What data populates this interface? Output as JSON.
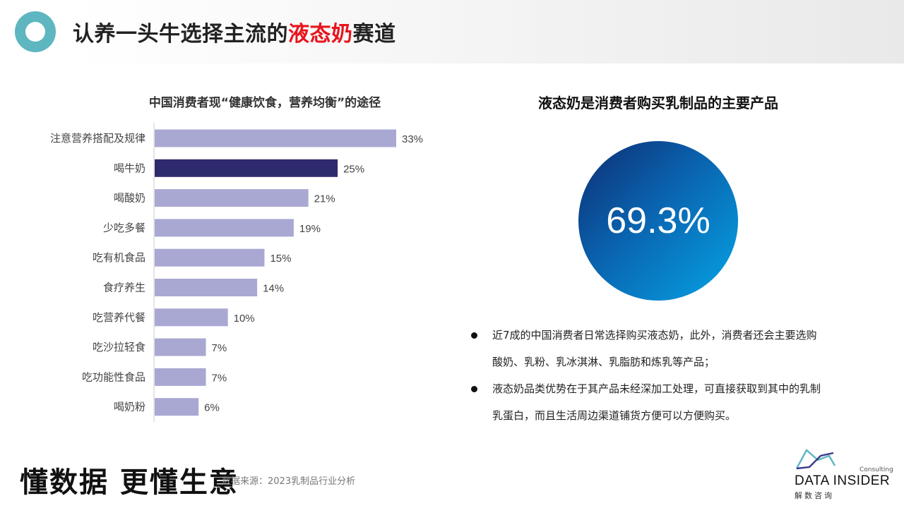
{
  "header": {
    "title_prefix": "认养一头牛选择主流的",
    "title_highlight": "液态奶",
    "title_suffix": "赛道",
    "highlight_color": "#e8141c",
    "ring_color": "#5eb6c0"
  },
  "chart_data": {
    "type": "bar",
    "orientation": "horizontal",
    "title": "中国消费者现“健康饮食，营养均衡”的途径",
    "categories": [
      "注意营养搭配及规律",
      "喝牛奶",
      "喝酸奶",
      "少吃多餐",
      "吃有机食品",
      "食疗养生",
      "吃营养代餐",
      "吃沙拉轻食",
      "吃功能性食品",
      "喝奶粉"
    ],
    "values": [
      33,
      25,
      21,
      19,
      15,
      14,
      10,
      7,
      7,
      6
    ],
    "value_labels": [
      "33%",
      "25%",
      "21%",
      "19%",
      "15%",
      "14%",
      "10%",
      "7%",
      "7%",
      "6%"
    ],
    "unit": "%",
    "highlight_index": 1,
    "colors": {
      "bar": "#a9a8d3",
      "highlight": "#2e2a6e",
      "axis": "#cccccc"
    },
    "xlim": [
      0,
      33
    ],
    "grid": false,
    "legend": "none"
  },
  "right_panel": {
    "title": "液态奶是消费者购买乳制品的主要产品",
    "big_value": "69.3%",
    "bullets": [
      {
        "line1": "近7成的中国消费者日常选择购买液态奶，此外，消费者还会主要选购",
        "line2": "酸奶、乳粉、乳冰淇淋、乳脂肪和炼乳等产品；"
      },
      {
        "line1": "液态奶品类优势在于其产品未经深加工处理，可直接获取到其中的乳制",
        "line2": "乳蛋白，而且生活周边渠道铺货方便可以方便购买。"
      }
    ]
  },
  "footer": {
    "slogan": "懂数据 更懂生意",
    "source": "数据来源：2023乳制品行业分析",
    "logo_consulting": "Consulting",
    "logo_main": "DATA INSIDER",
    "logo_cn": "解数咨询"
  }
}
